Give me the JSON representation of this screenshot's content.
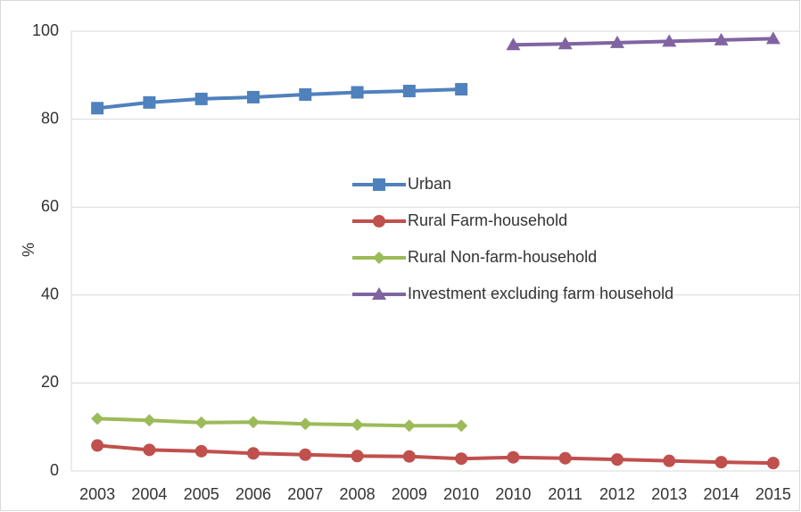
{
  "chart_data": {
    "type": "line",
    "y_label": "%",
    "categories": [
      "2003",
      "2004",
      "2005",
      "2006",
      "2007",
      "2008",
      "2009",
      "2010",
      "2010",
      "2011",
      "2012",
      "2013",
      "2014",
      "2015"
    ],
    "series": [
      {
        "name": "Urban",
        "color": "#4f81bd",
        "marker": "square",
        "values": [
          82.5,
          83.8,
          84.6,
          85.0,
          85.6,
          86.1,
          86.4,
          86.8,
          null,
          null,
          null,
          null,
          null,
          null
        ]
      },
      {
        "name": "Rural Farm-household",
        "color": "#c0504d",
        "marker": "circle",
        "values": [
          5.8,
          4.8,
          4.5,
          4.0,
          3.7,
          3.4,
          3.3,
          2.8,
          3.1,
          2.9,
          2.6,
          2.3,
          2.0,
          1.8
        ]
      },
      {
        "name": "Rural Non-farm-household",
        "color": "#9bbb59",
        "marker": "diamond",
        "values": [
          11.9,
          11.5,
          11.0,
          11.1,
          10.7,
          10.5,
          10.3,
          10.3,
          null,
          null,
          null,
          null,
          null,
          null
        ]
      },
      {
        "name": "Investment excluding farm household",
        "color": "#8064a2",
        "marker": "triangle",
        "values": [
          null,
          null,
          null,
          null,
          null,
          null,
          null,
          null,
          96.9,
          97.1,
          97.4,
          97.7,
          98.0,
          98.3
        ]
      }
    ],
    "ylim": [
      0,
      100
    ],
    "yticks": [
      0,
      20,
      40,
      60,
      80,
      100
    ],
    "grid": true,
    "legend": "center"
  }
}
